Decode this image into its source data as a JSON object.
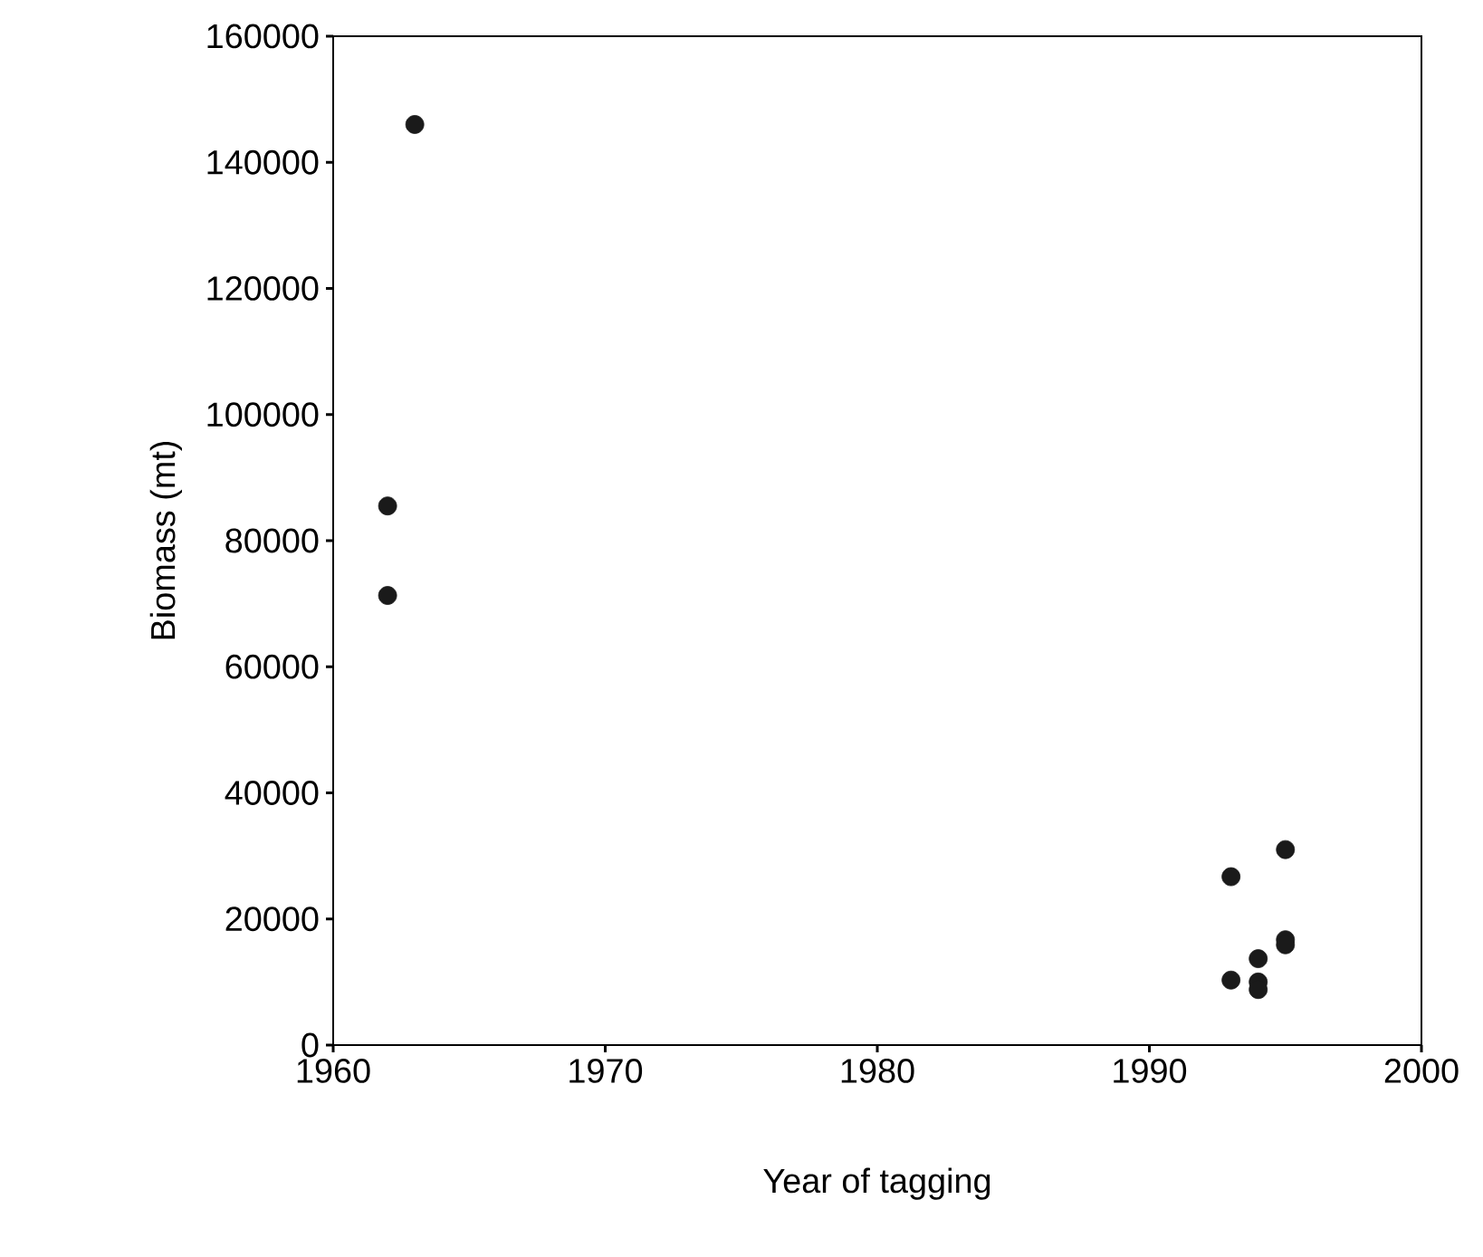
{
  "chart_data": {
    "type": "scatter",
    "xlabel": "Year of tagging",
    "ylabel": "Biomass (mt)",
    "x": [
      1963,
      1962,
      1962,
      1993,
      1993,
      1994,
      1994,
      1994,
      1995,
      1995,
      1995
    ],
    "values": [
      146000,
      85500,
      71300,
      26700,
      10300,
      13700,
      10000,
      8800,
      31000,
      16700,
      15900
    ],
    "color": "#1a1a1a",
    "grid": false,
    "xlim": [
      1960,
      2000
    ],
    "xticks": [
      1960,
      1970,
      1980,
      1990,
      2000
    ],
    "ylim": [
      0,
      160000
    ],
    "yticks": [
      0,
      20000,
      40000,
      60000,
      80000,
      100000,
      120000,
      140000,
      160000
    ]
  }
}
